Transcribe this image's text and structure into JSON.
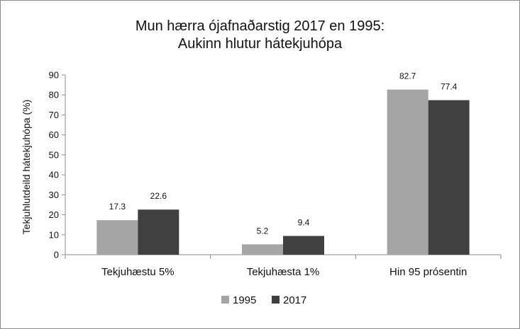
{
  "chart_data": {
    "type": "bar",
    "title_line1": "Mun hærra ójafnaðarstig 2017 en 1995:",
    "title_line2": "Aukinn hlutur hátekjuhópa",
    "ylabel": "Tekjuhlutdeild hátekjuhópa  (%)",
    "xlabel": "",
    "categories": [
      "Tekjuhæstu 5%",
      "Tekjuhæsta 1%",
      "Hin 95 prósentin"
    ],
    "series": [
      {
        "name": "1995",
        "values": [
          17.3,
          5.2,
          82.7
        ],
        "labels": [
          "17.3",
          "5.2",
          "82.7"
        ],
        "color": "#a5a5a5"
      },
      {
        "name": "2017",
        "values": [
          22.6,
          9.4,
          77.4
        ],
        "labels": [
          "22.6",
          "9.4",
          "77.4"
        ],
        "color": "#404040"
      }
    ],
    "ylim": [
      0,
      90
    ],
    "yticks": [
      "0",
      "10",
      "20",
      "30",
      "40",
      "50",
      "60",
      "70",
      "80",
      "90"
    ],
    "grid": false,
    "legend": "bottom"
  }
}
